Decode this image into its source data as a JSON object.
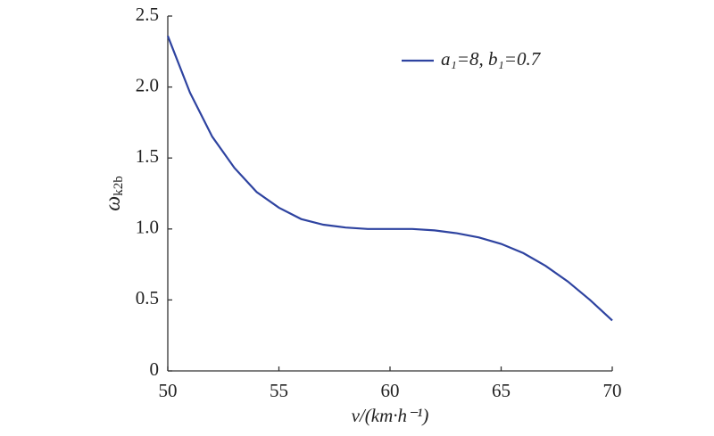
{
  "chart_data": {
    "type": "line",
    "x_label": "v/(km·h⁻¹)",
    "y_label": {
      "text": "ω",
      "subscript": "k2b"
    },
    "x": [
      50,
      51,
      52,
      53,
      54,
      55,
      56,
      57,
      58,
      59,
      60,
      61,
      62,
      63,
      64,
      65,
      66,
      67,
      68,
      69,
      70
    ],
    "series": [
      {
        "name": "a₁=8, b₁=0.7",
        "color": "#2e43a0",
        "values": [
          2.36,
          1.96,
          1.65,
          1.43,
          1.26,
          1.15,
          1.07,
          1.03,
          1.01,
          1.0,
          1.0,
          1.0,
          0.99,
          0.97,
          0.94,
          0.895,
          0.83,
          0.74,
          0.63,
          0.5,
          0.355
        ]
      }
    ],
    "xlim": [
      50,
      70
    ],
    "xticks": [
      50,
      55,
      60,
      65,
      70
    ],
    "ylim": [
      0,
      2.5
    ],
    "yticks": [
      0,
      0.5,
      {
        "value": 1,
        "label": "1.0"
      },
      1.5,
      {
        "value": 2,
        "label": "2.0"
      },
      2.5
    ],
    "legend": "upper right",
    "grid": false
  }
}
